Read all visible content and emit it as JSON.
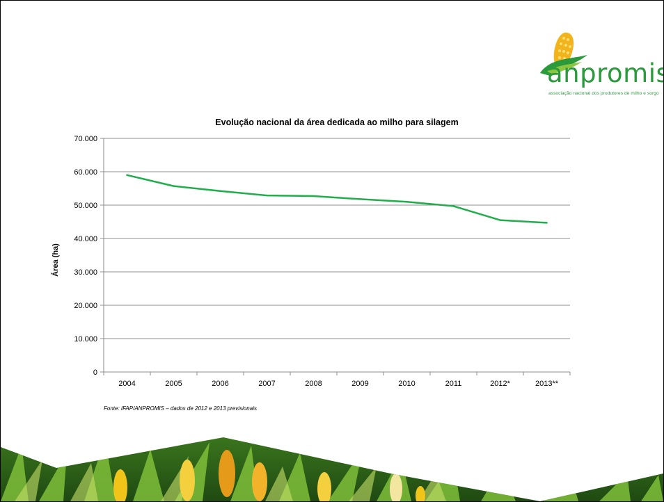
{
  "logo": {
    "wordmark": "anpromis",
    "tagline": "associação nacional dos produtores de milho e sorgo"
  },
  "source_note": "Fonte: IFAP/ANPROMIS – dados de 2012 e 2013 previsionais",
  "colors": {
    "line": "#1fae4b",
    "brand_green": "#2a9a3c",
    "grid": "#8c8c8c"
  },
  "chart_data": {
    "type": "line",
    "title": "Evolução nacional da área dedicada ao milho para silagem",
    "ylabel": "Área (ha)",
    "xlabel": "",
    "categories": [
      "2004",
      "2005",
      "2006",
      "2007",
      "2008",
      "2009",
      "2010",
      "2011",
      "2012*",
      "2013**"
    ],
    "series": [
      {
        "values": [
          59000,
          55700,
          54200,
          52900,
          52700,
          51800,
          51000,
          49700,
          45500,
          44700
        ]
      }
    ],
    "ylim": [
      0,
      70000
    ],
    "yticks": [
      0,
      10000,
      20000,
      30000,
      40000,
      50000,
      60000,
      70000
    ],
    "ytick_labels": [
      "0",
      "10.000",
      "20.000",
      "30.000",
      "40.000",
      "50.000",
      "60.000",
      "70.000"
    ],
    "grid": true,
    "legend": "none"
  }
}
